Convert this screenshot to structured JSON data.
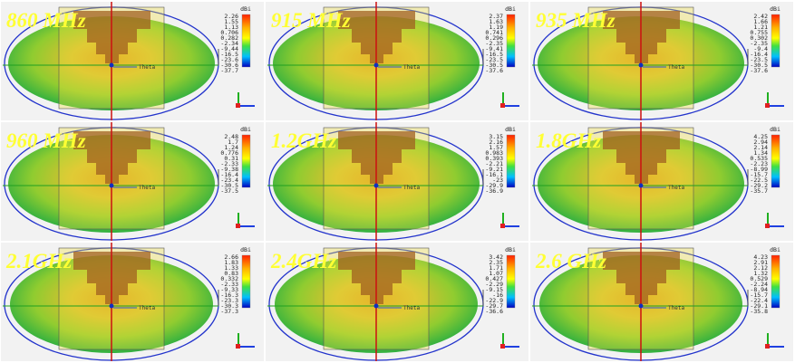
{
  "panels": [
    {
      "label": "860 MHz",
      "unit": "dBi",
      "axis_label": "Theta",
      "scale": [
        "2.26",
        "1.55",
        "1.13",
        "0.706",
        "0.282",
        "-2.34",
        "-9.44",
        "-16.5",
        "-23.6",
        "-30.6",
        "-37.7"
      ]
    },
    {
      "label": "915 MHz",
      "unit": "dBi",
      "axis_label": "Theta",
      "scale": [
        "2.37",
        "1.63",
        "1.19",
        "0.741",
        "0.296",
        "-2.35",
        "-9.41",
        "-16.5",
        "-23.5",
        "-30.5",
        "-37.6"
      ]
    },
    {
      "label": "935 MHz",
      "unit": "dBi",
      "axis_label": "Theta",
      "scale": [
        "2.42",
        "1.66",
        "1.21",
        "0.755",
        "0.302",
        "-2.35",
        "-9.4",
        "-16.4",
        "-23.5",
        "-30.5",
        "-37.6"
      ]
    },
    {
      "label": "960 MHz",
      "unit": "dBi",
      "axis_label": "Theta",
      "scale": [
        "2.48",
        "1.7",
        "1.24",
        "0.776",
        "0.31",
        "-2.33",
        "-9.38",
        "-16.4",
        "-23.4",
        "-30.5",
        "-37.5"
      ]
    },
    {
      "label": "1.2GHz",
      "unit": "dBi",
      "axis_label": "Theta",
      "scale": [
        "3.15",
        "2.16",
        "1.57",
        "0.983",
        "0.393",
        "-2.21",
        "-9.21",
        "-16.1",
        "-23",
        "-29.9",
        "-36.9"
      ]
    },
    {
      "label": "1.8GHz",
      "unit": "dBi",
      "axis_label": "Theta",
      "scale": [
        "4.25",
        "2.94",
        "2.14",
        "1.34",
        "0.535",
        "-2.23",
        "-8.99",
        "-15.7",
        "-22.5",
        "-29.2",
        "-35.7"
      ]
    },
    {
      "label": "2.1GHz",
      "unit": "dBi",
      "axis_label": "Theta",
      "scale": [
        "2.66",
        "1.83",
        "1.33",
        "0.83",
        "0.332",
        "-2.33",
        "-9.33",
        "-16.3",
        "-23.3",
        "-30.3",
        "-37.3"
      ]
    },
    {
      "label": "2.4GHz",
      "unit": "dBi",
      "axis_label": "Theta",
      "scale": [
        "3.42",
        "2.35",
        "1.71",
        "1.07",
        "0.427",
        "-2.29",
        "-9.15",
        "-16",
        "-22.9",
        "-29.7",
        "-36.6"
      ]
    },
    {
      "label": "2.6 GHz",
      "unit": "dBi",
      "axis_label": "Theta",
      "scale": [
        "4.23",
        "2.91",
        "2.12",
        "1.32",
        "0.529",
        "-2.24",
        "-8.94",
        "-15.7",
        "-22.4",
        "-29.1",
        "-35.8"
      ]
    }
  ]
}
